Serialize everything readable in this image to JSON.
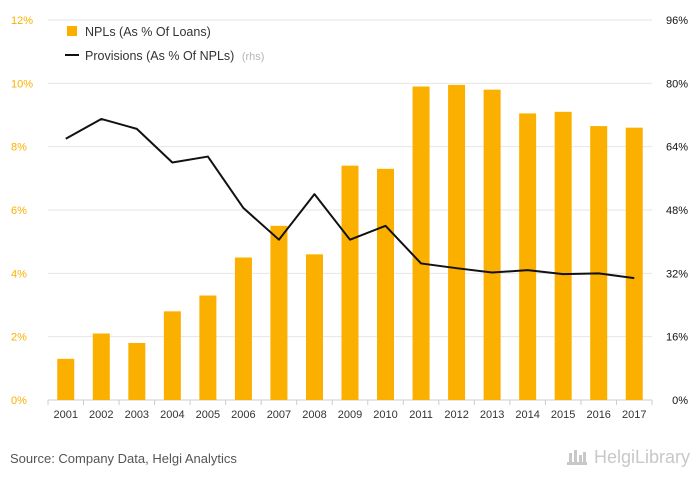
{
  "colors": {
    "bars": "#FBB000",
    "line": "#111111",
    "left_axis_text": "#FBB000",
    "right_axis_text": "#111111",
    "grid": "#e6e6e6",
    "footer_text": "#555555",
    "rhs_note": "#b5b5b5"
  },
  "chart_data": {
    "type": "bar",
    "categories": [
      "2001",
      "2002",
      "2003",
      "2004",
      "2005",
      "2006",
      "2007",
      "2008",
      "2009",
      "2010",
      "2011",
      "2012",
      "2013",
      "2014",
      "2015",
      "2016",
      "2017"
    ],
    "series": [
      {
        "name": "NPLs (As % Of Loans)",
        "type": "bar",
        "axis": "left",
        "values": [
          1.3,
          2.1,
          1.8,
          2.8,
          3.3,
          4.5,
          5.5,
          4.6,
          7.4,
          7.3,
          9.9,
          9.95,
          9.8,
          9.05,
          9.1,
          8.65,
          8.6
        ]
      },
      {
        "name": "Provisions (As % Of NPLs)",
        "name_suffix": "(rhs)",
        "type": "line",
        "axis": "right",
        "values": [
          66,
          71,
          68.5,
          60,
          61.5,
          48.5,
          40.5,
          52,
          40.5,
          44,
          34.5,
          33.3,
          32.2,
          32.8,
          31.8,
          32,
          30.8
        ]
      }
    ],
    "y_left": {
      "min": 0,
      "max": 12,
      "ticks": [
        "0%",
        "2%",
        "4%",
        "6%",
        "8%",
        "10%",
        "12%"
      ]
    },
    "y_right": {
      "min": 0,
      "max": 96,
      "ticks": [
        "0%",
        "16%",
        "32%",
        "48%",
        "64%",
        "80%",
        "96%"
      ]
    },
    "grid": true,
    "legend_position": "top-left"
  },
  "footer": {
    "source": "Source: Company Data, Helgi Analytics",
    "brand": "HelgiLibrary"
  }
}
